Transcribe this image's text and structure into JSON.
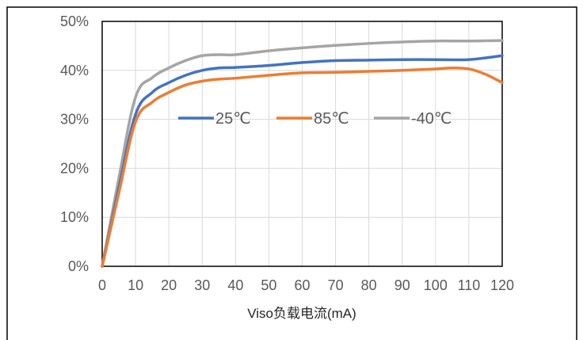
{
  "chart_data": {
    "type": "line",
    "title": "",
    "xlabel": "Viso负载电流(mA)",
    "ylabel": "",
    "xlim": [
      0,
      120
    ],
    "ylim": [
      0,
      50
    ],
    "x_ticks": [
      "0",
      "10",
      "20",
      "30",
      "40",
      "50",
      "60",
      "70",
      "80",
      "90",
      "100",
      "110",
      "120"
    ],
    "y_ticks": [
      "0%",
      "10%",
      "20%",
      "30%",
      "40%",
      "50%"
    ],
    "grid": true,
    "legend_position": "inside-upper-center",
    "series": [
      {
        "name": "25℃",
        "color": "#4472C4",
        "x": [
          0,
          5,
          10,
          15,
          20,
          25,
          30,
          35,
          40,
          50,
          60,
          70,
          80,
          90,
          100,
          110,
          120
        ],
        "y": [
          0,
          16,
          31,
          35.5,
          37.5,
          39,
          40,
          40.5,
          40.6,
          41,
          41.6,
          42,
          42.1,
          42.2,
          42.2,
          42.2,
          43
        ]
      },
      {
        "name": "85℃",
        "color": "#ED7D31",
        "x": [
          0,
          5,
          10,
          15,
          20,
          25,
          30,
          35,
          40,
          50,
          60,
          70,
          80,
          90,
          100,
          105,
          110,
          115,
          120
        ],
        "y": [
          0,
          15,
          29.5,
          33.5,
          35.5,
          37,
          37.8,
          38.2,
          38.4,
          39,
          39.5,
          39.6,
          39.8,
          40,
          40.3,
          40.5,
          40.3,
          39.2,
          37.5
        ]
      },
      {
        "name": "-40℃",
        "color": "#A5A5A5",
        "x": [
          0,
          5,
          10,
          15,
          20,
          25,
          30,
          35,
          40,
          50,
          60,
          70,
          80,
          90,
          100,
          110,
          120
        ],
        "y": [
          0,
          18,
          34.5,
          38.5,
          40.5,
          42,
          43,
          43.2,
          43.2,
          44,
          44.6,
          45.1,
          45.5,
          45.8,
          46,
          46,
          46.1
        ]
      }
    ]
  }
}
